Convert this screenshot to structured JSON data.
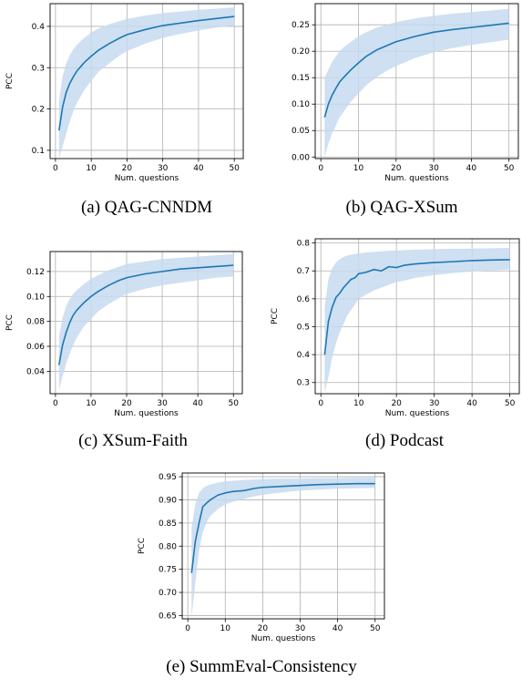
{
  "chart_data": [
    {
      "type": "line",
      "caption": "(a) QAG-CNNDM",
      "xlabel": "Num. questions",
      "ylabel": "PCC",
      "xlim": [
        -1.5,
        52.5
      ],
      "ylim": [
        0.08,
        0.455
      ],
      "xticks": [
        0,
        10,
        20,
        30,
        40,
        50
      ],
      "yticks": [
        0.1,
        0.2,
        0.3,
        0.4
      ],
      "ytick_labels": [
        "0.1",
        "0.2",
        "0.3",
        "0.4"
      ],
      "grid": true,
      "line_color": "#1f77b4",
      "band_color": "#c6dbef",
      "series": [
        {
          "x": [
            1,
            2,
            3,
            4,
            5,
            6,
            8,
            10,
            12,
            15,
            18,
            20,
            25,
            30,
            35,
            40,
            45,
            50
          ],
          "y": [
            0.148,
            0.205,
            0.24,
            0.262,
            0.278,
            0.292,
            0.312,
            0.328,
            0.342,
            0.358,
            0.372,
            0.38,
            0.392,
            0.402,
            0.408,
            0.414,
            0.419,
            0.424
          ],
          "lower": [
            0.08,
            0.11,
            0.14,
            0.17,
            0.195,
            0.215,
            0.245,
            0.268,
            0.29,
            0.31,
            0.33,
            0.34,
            0.358,
            0.372,
            0.382,
            0.39,
            0.397,
            0.402
          ],
          "upper": [
            0.22,
            0.28,
            0.31,
            0.33,
            0.345,
            0.355,
            0.372,
            0.385,
            0.395,
            0.405,
            0.413,
            0.418,
            0.426,
            0.432,
            0.436,
            0.44,
            0.443,
            0.446
          ]
        }
      ]
    },
    {
      "type": "line",
      "caption": "(b) QAG-XSum",
      "xlabel": "Num. questions",
      "ylabel": "",
      "xlim": [
        -1.5,
        52.5
      ],
      "ylim": [
        -0.003,
        0.29
      ],
      "xticks": [
        0,
        10,
        20,
        30,
        40,
        50
      ],
      "yticks": [
        0.0,
        0.05,
        0.1,
        0.15,
        0.2,
        0.25
      ],
      "ytick_labels": [
        "0.00",
        "0.05",
        "0.10",
        "0.15",
        "0.20",
        "0.25"
      ],
      "grid": true,
      "line_color": "#1f77b4",
      "band_color": "#c6dbef",
      "series": [
        {
          "x": [
            1,
            2,
            3,
            4,
            5,
            6,
            8,
            10,
            12,
            15,
            18,
            20,
            25,
            30,
            35,
            40,
            45,
            50
          ],
          "y": [
            0.075,
            0.1,
            0.117,
            0.13,
            0.142,
            0.15,
            0.165,
            0.178,
            0.19,
            0.203,
            0.212,
            0.218,
            0.228,
            0.236,
            0.241,
            0.245,
            0.249,
            0.253
          ],
          "lower": [
            0.0,
            0.025,
            0.045,
            0.06,
            0.075,
            0.085,
            0.105,
            0.12,
            0.135,
            0.152,
            0.165,
            0.172,
            0.187,
            0.198,
            0.206,
            0.212,
            0.217,
            0.222
          ],
          "upper": [
            0.15,
            0.165,
            0.18,
            0.19,
            0.2,
            0.207,
            0.218,
            0.228,
            0.236,
            0.245,
            0.251,
            0.255,
            0.262,
            0.267,
            0.271,
            0.274,
            0.277,
            0.28
          ]
        }
      ]
    },
    {
      "type": "line",
      "caption": "(c) XSum-Faith",
      "xlabel": "Num. questions",
      "ylabel": "PCC",
      "xlim": [
        -1.5,
        52.5
      ],
      "ylim": [
        0.022,
        0.136
      ],
      "xticks": [
        0,
        10,
        20,
        30,
        40,
        50
      ],
      "yticks": [
        0.04,
        0.06,
        0.08,
        0.1,
        0.12
      ],
      "ytick_labels": [
        "0.04",
        "0.06",
        "0.08",
        "0.10",
        "0.12"
      ],
      "grid": true,
      "line_color": "#1f77b4",
      "band_color": "#c6dbef",
      "series": [
        {
          "x": [
            1,
            2,
            3,
            4,
            5,
            6,
            8,
            10,
            12,
            15,
            18,
            20,
            25,
            30,
            35,
            40,
            45,
            50
          ],
          "y": [
            0.045,
            0.061,
            0.071,
            0.079,
            0.085,
            0.089,
            0.095,
            0.1,
            0.104,
            0.109,
            0.113,
            0.115,
            0.118,
            0.12,
            0.122,
            0.123,
            0.124,
            0.125
          ],
          "lower": [
            0.025,
            0.036,
            0.046,
            0.054,
            0.061,
            0.067,
            0.076,
            0.082,
            0.088,
            0.094,
            0.099,
            0.102,
            0.106,
            0.109,
            0.111,
            0.113,
            0.115,
            0.116
          ],
          "upper": [
            0.068,
            0.083,
            0.092,
            0.098,
            0.102,
            0.105,
            0.11,
            0.114,
            0.117,
            0.121,
            0.124,
            0.126,
            0.128,
            0.13,
            0.131,
            0.132,
            0.133,
            0.134
          ]
        }
      ]
    },
    {
      "type": "line",
      "caption": "(d) Podcast",
      "xlabel": "Num. questions",
      "ylabel": "PCC",
      "xlim": [
        -1.5,
        52.5
      ],
      "ylim": [
        0.26,
        0.815
      ],
      "xticks": [
        0,
        10,
        20,
        30,
        40,
        50
      ],
      "yticks": [
        0.3,
        0.4,
        0.5,
        0.6,
        0.7,
        0.8
      ],
      "ytick_labels": [
        "0.3",
        "0.4",
        "0.5",
        "0.6",
        "0.7",
        "0.8"
      ],
      "grid": true,
      "line_color": "#1f77b4",
      "band_color": "#c6dbef",
      "series": [
        {
          "x": [
            1,
            2,
            3,
            4,
            5,
            6,
            7,
            8,
            9,
            10,
            12,
            14,
            16,
            18,
            20,
            22,
            25,
            30,
            35,
            40,
            45,
            50
          ],
          "y": [
            0.4,
            0.52,
            0.57,
            0.605,
            0.62,
            0.64,
            0.655,
            0.67,
            0.675,
            0.69,
            0.695,
            0.705,
            0.7,
            0.715,
            0.712,
            0.72,
            0.725,
            0.73,
            0.733,
            0.737,
            0.739,
            0.74
          ],
          "lower": [
            0.265,
            0.32,
            0.39,
            0.44,
            0.48,
            0.51,
            0.54,
            0.56,
            0.58,
            0.6,
            0.615,
            0.63,
            0.64,
            0.65,
            0.66,
            0.665,
            0.675,
            0.685,
            0.692,
            0.698,
            0.702,
            0.705
          ],
          "upper": [
            0.57,
            0.67,
            0.71,
            0.73,
            0.742,
            0.75,
            0.755,
            0.758,
            0.76,
            0.763,
            0.766,
            0.768,
            0.77,
            0.772,
            0.773,
            0.774,
            0.776,
            0.778,
            0.779,
            0.78,
            0.781,
            0.782
          ]
        }
      ]
    },
    {
      "type": "line",
      "caption": "(e) SummEval-Consistency",
      "xlabel": "Num. questions",
      "ylabel": "PCC",
      "xlim": [
        -1.5,
        52.5
      ],
      "ylim": [
        0.643,
        0.958
      ],
      "xticks": [
        0,
        10,
        20,
        30,
        40,
        50
      ],
      "yticks": [
        0.65,
        0.7,
        0.75,
        0.8,
        0.85,
        0.9,
        0.95
      ],
      "ytick_labels": [
        "0.65",
        "0.70",
        "0.75",
        "0.80",
        "0.85",
        "0.90",
        "0.95"
      ],
      "grid": true,
      "line_color": "#1f77b4",
      "band_color": "#c6dbef",
      "series": [
        {
          "x": [
            1,
            2,
            3,
            4,
            5,
            6,
            8,
            10,
            12,
            15,
            18,
            20,
            25,
            30,
            35,
            40,
            45,
            50
          ],
          "y": [
            0.742,
            0.81,
            0.85,
            0.885,
            0.893,
            0.9,
            0.91,
            0.915,
            0.918,
            0.92,
            0.925,
            0.927,
            0.929,
            0.931,
            0.933,
            0.934,
            0.935,
            0.935
          ],
          "lower": [
            0.645,
            0.72,
            0.79,
            0.83,
            0.852,
            0.865,
            0.88,
            0.89,
            0.896,
            0.902,
            0.908,
            0.911,
            0.916,
            0.92,
            0.922,
            0.924,
            0.925,
            0.926
          ],
          "upper": [
            0.84,
            0.89,
            0.915,
            0.925,
            0.93,
            0.933,
            0.937,
            0.94,
            0.941,
            0.943,
            0.944,
            0.945,
            0.946,
            0.946,
            0.947,
            0.947,
            0.948,
            0.948
          ]
        }
      ]
    }
  ]
}
